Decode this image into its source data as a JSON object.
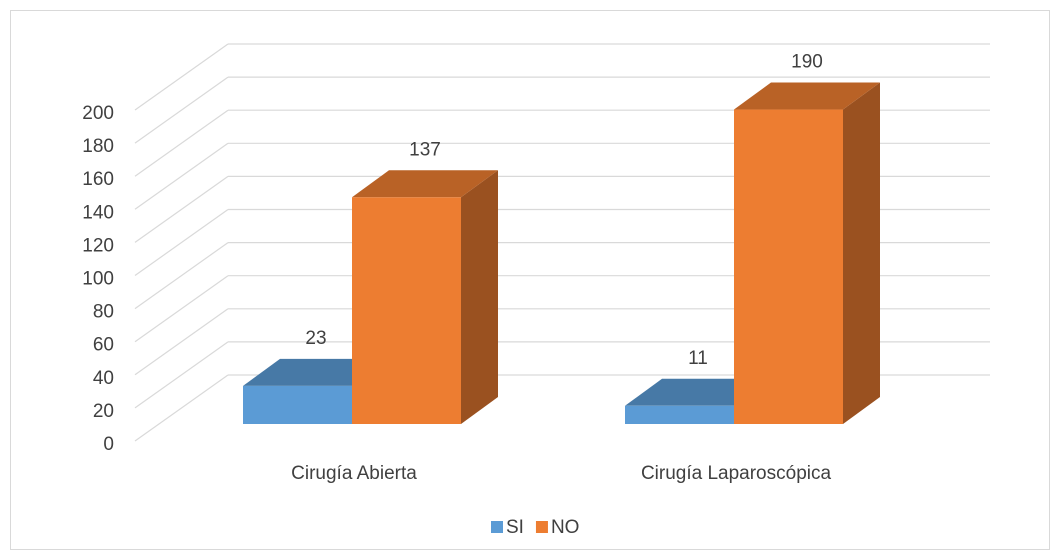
{
  "chart_data": {
    "type": "bar3d",
    "categories": [
      "Cirugía Abierta",
      "Cirugía Laparoscópica"
    ],
    "series": [
      {
        "name": "SI",
        "color": "#5b9bd5",
        "values": [
          23,
          11
        ]
      },
      {
        "name": "NO",
        "color": "#ed7d31",
        "values": [
          137,
          190
        ]
      }
    ],
    "ylim": [
      0,
      200
    ],
    "yticks": [
      0,
      20,
      40,
      60,
      80,
      100,
      120,
      140,
      160,
      180,
      200
    ],
    "grid": true,
    "legend": "bottom"
  }
}
